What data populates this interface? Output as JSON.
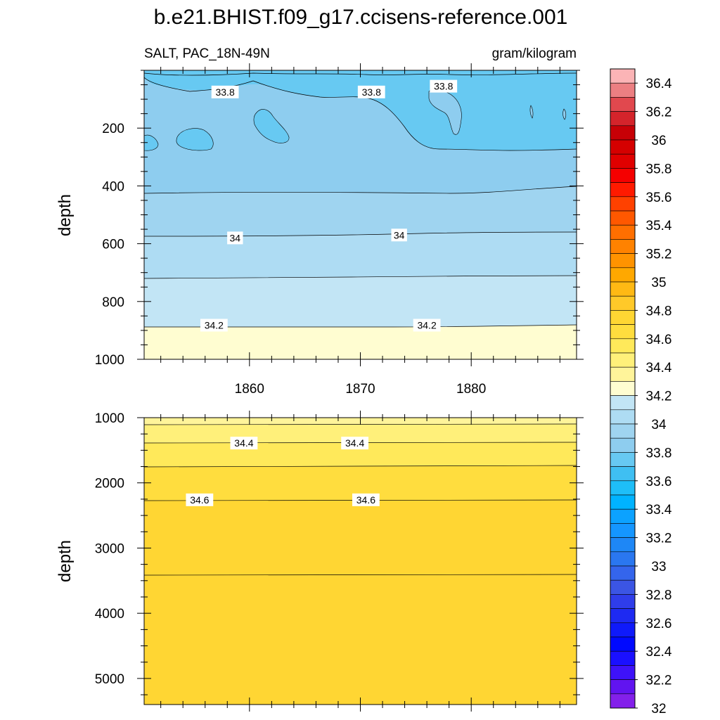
{
  "chart_data": {
    "type": "heatmap",
    "title": "b.e21.BHIST.f09_g17.ccisens-reference.001",
    "subtitle_left": "SALT, PAC_18N-49N",
    "subtitle_right": "gram/kilogram",
    "panels": [
      {
        "name": "upper",
        "ylabel": "depth",
        "xlim": [
          1850.5,
          1889.5
        ],
        "ylim": [
          1000,
          0
        ],
        "y_ticks": [
          200,
          400,
          600,
          800,
          1000
        ],
        "x_ticks": [
          1860,
          1870,
          1880
        ],
        "x_tick_labels": [
          "1860",
          "1870",
          "1880"
        ],
        "contour_labels": [
          {
            "text": "33.8",
            "year": 1857.8,
            "depth": 75
          },
          {
            "text": "33.8",
            "year": 1871.0,
            "depth": 75
          },
          {
            "text": "33.8",
            "year": 1877.5,
            "depth": 55
          },
          {
            "text": "34",
            "year": 1858.7,
            "depth": 580
          },
          {
            "text": "34",
            "year": 1873.5,
            "depth": 570
          },
          {
            "text": "34.2",
            "year": 1856.8,
            "depth": 882
          },
          {
            "text": "34.2",
            "year": 1876.0,
            "depth": 882
          }
        ]
      },
      {
        "name": "lower",
        "ylabel": "depth",
        "xlim": [
          1850.5,
          1889.5
        ],
        "ylim": [
          5400,
          1000
        ],
        "y_ticks": [
          1000,
          2000,
          3000,
          4000,
          5000
        ],
        "x_ticks": [
          1860,
          1870,
          1880
        ],
        "contour_labels": [
          {
            "text": "34.4",
            "year": 1859.5,
            "depth": 1390
          },
          {
            "text": "34.4",
            "year": 1869.5,
            "depth": 1390
          },
          {
            "text": "34.6",
            "year": 1855.5,
            "depth": 2260
          },
          {
            "text": "34.6",
            "year": 1870.5,
            "depth": 2260
          }
        ]
      }
    ],
    "colorbar": {
      "labels": [
        "36.4",
        "36.2",
        "36",
        "35.8",
        "35.6",
        "35.4",
        "35.2",
        "35",
        "34.8",
        "34.6",
        "34.4",
        "34.2",
        "34",
        "33.8",
        "33.6",
        "33.4",
        "33.2",
        "33",
        "32.8",
        "32.6",
        "32.4",
        "32.2",
        "32"
      ],
      "colors": [
        "#FBB4B6",
        "#EC7F82",
        "#E1484E",
        "#D4242B",
        "#C70006",
        "#D50000",
        "#E00000",
        "#F50000",
        "#FF1A00",
        "#FF4100",
        "#FF5800",
        "#FF6F00",
        "#FF8200",
        "#FF9300",
        "#FFA800",
        "#FFB914",
        "#FFC929",
        "#FFD633",
        "#FFDD3E",
        "#FFE95A",
        "#FFF07A",
        "#FFF49A",
        "#FFFDD1",
        "#C2E5F5",
        "#AEDCF3",
        "#9FD4F0",
        "#8ECDEF",
        "#67C9F2",
        "#3FBFF2",
        "#1EBEF8",
        "#00B3FF",
        "#0CA2FF",
        "#1596FF",
        "#1E87F6",
        "#2A77F0",
        "#3465EC",
        "#3B55E4",
        "#2F3DEA",
        "#1E2AF2",
        "#0F1AFA",
        "#0009FF",
        "#1A10FF",
        "#3E12F9",
        "#6114F0",
        "#8320EA"
      ]
    }
  }
}
